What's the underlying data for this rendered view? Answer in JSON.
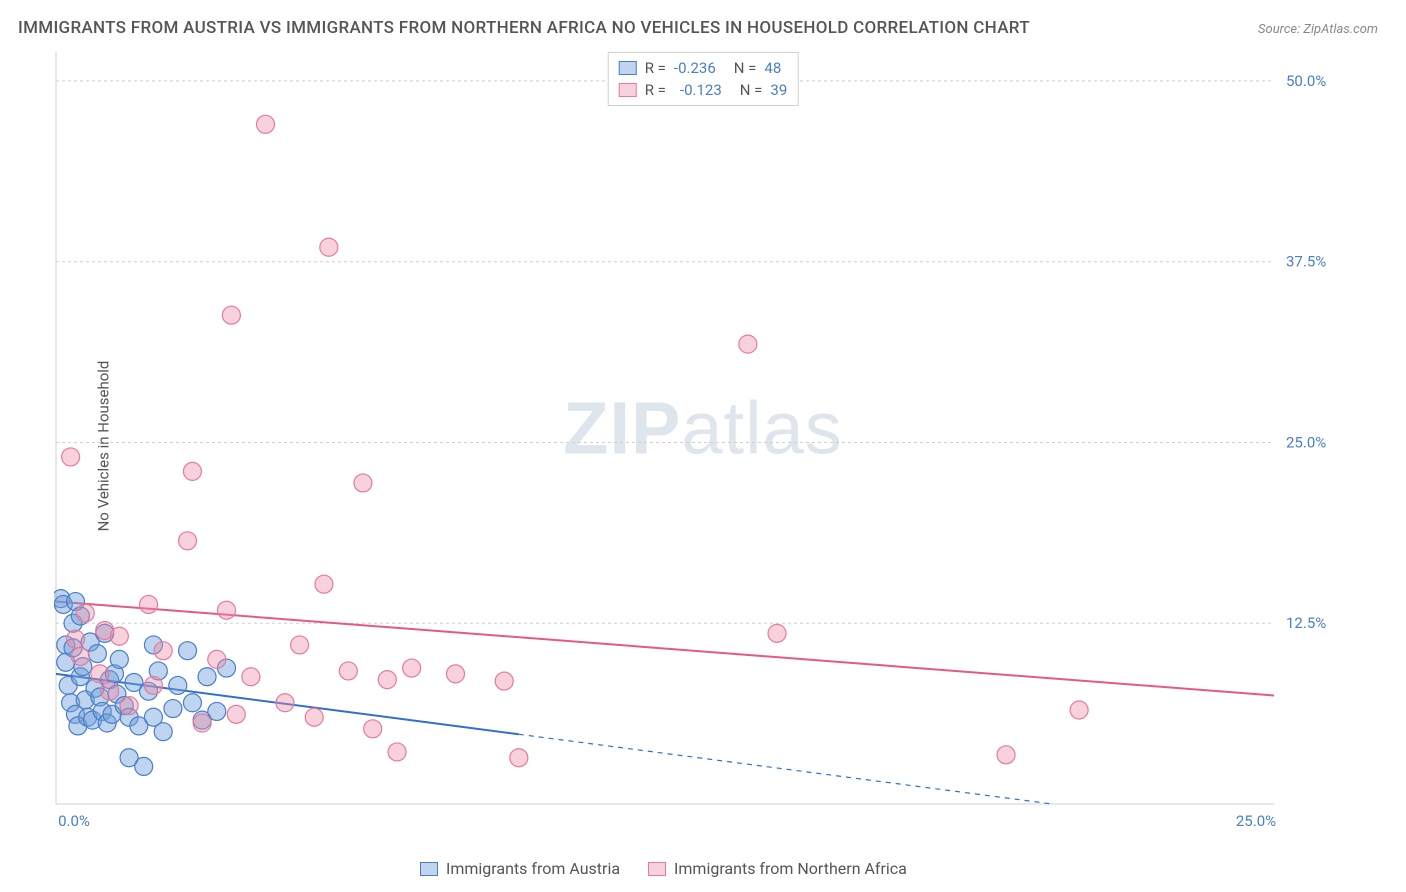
{
  "title": "IMMIGRANTS FROM AUSTRIA VS IMMIGRANTS FROM NORTHERN AFRICA NO VEHICLES IN HOUSEHOLD CORRELATION CHART",
  "source": "Source: ZipAtlas.com",
  "y_axis_label": "No Vehicles in Household",
  "watermark_zip": "ZIP",
  "watermark_atlas": "atlas",
  "chart": {
    "type": "scatter",
    "xlim": [
      0,
      25
    ],
    "ylim": [
      0,
      52
    ],
    "x_ticks": [
      {
        "v": 0,
        "l": "0.0%"
      },
      {
        "v": 25,
        "l": "25.0%"
      }
    ],
    "y_ticks": [
      {
        "v": 12.5,
        "l": "12.5%"
      },
      {
        "v": 25,
        "l": "25.0%"
      },
      {
        "v": 37.5,
        "l": "37.5%"
      },
      {
        "v": 50,
        "l": "50.0%"
      }
    ],
    "background_color": "#ffffff",
    "grid_color": "#d0d0d0",
    "series": [
      {
        "name": "Immigrants from Austria",
        "legend_label": "Immigrants from Austria",
        "marker_color_fill": "rgba(110,160,220,0.45)",
        "marker_color_stroke": "#4a7ec9",
        "marker_radius": 9,
        "trend_color": "#2f6fd1",
        "trend_width": 2,
        "trend": {
          "y_at_x0": 9.0,
          "y_at_xmax": -2.0,
          "solid_until_x": 9.5
        },
        "R": "-0.236",
        "N": "48",
        "points": [
          [
            0.1,
            14.2
          ],
          [
            0.15,
            13.8
          ],
          [
            0.2,
            11.0
          ],
          [
            0.2,
            9.8
          ],
          [
            0.25,
            8.2
          ],
          [
            0.3,
            7.0
          ],
          [
            0.35,
            12.5
          ],
          [
            0.35,
            10.8
          ],
          [
            0.4,
            14.0
          ],
          [
            0.4,
            6.2
          ],
          [
            0.45,
            5.4
          ],
          [
            0.5,
            13.0
          ],
          [
            0.5,
            8.8
          ],
          [
            0.55,
            9.5
          ],
          [
            0.6,
            7.2
          ],
          [
            0.65,
            6.0
          ],
          [
            0.7,
            11.2
          ],
          [
            0.75,
            5.8
          ],
          [
            0.8,
            8.0
          ],
          [
            0.85,
            10.4
          ],
          [
            0.9,
            7.4
          ],
          [
            0.95,
            6.4
          ],
          [
            1.0,
            11.8
          ],
          [
            1.05,
            5.6
          ],
          [
            1.1,
            8.6
          ],
          [
            1.15,
            6.2
          ],
          [
            1.2,
            9.0
          ],
          [
            1.25,
            7.6
          ],
          [
            1.3,
            10.0
          ],
          [
            1.4,
            6.8
          ],
          [
            1.5,
            3.2
          ],
          [
            1.5,
            6.0
          ],
          [
            1.6,
            8.4
          ],
          [
            1.7,
            5.4
          ],
          [
            1.8,
            2.6
          ],
          [
            1.9,
            7.8
          ],
          [
            2.0,
            11.0
          ],
          [
            2.0,
            6.0
          ],
          [
            2.1,
            9.2
          ],
          [
            2.2,
            5.0
          ],
          [
            2.4,
            6.6
          ],
          [
            2.5,
            8.2
          ],
          [
            2.7,
            10.6
          ],
          [
            2.8,
            7.0
          ],
          [
            3.0,
            5.8
          ],
          [
            3.1,
            8.8
          ],
          [
            3.3,
            6.4
          ],
          [
            3.5,
            9.4
          ]
        ]
      },
      {
        "name": "Immigrants from Northern Africa",
        "legend_label": "Immigrants from Northern Africa",
        "marker_color_fill": "rgba(235,140,165,0.4)",
        "marker_color_stroke": "#e87a9c",
        "marker_radius": 9,
        "trend_color": "#e35a88",
        "trend_width": 2,
        "trend": {
          "y_at_x0": 14.0,
          "y_at_xmax": 7.5,
          "solid_until_x": 25
        },
        "R": "-0.123",
        "N": "39",
        "points": [
          [
            0.3,
            24.0
          ],
          [
            0.4,
            11.4
          ],
          [
            0.5,
            10.2
          ],
          [
            0.6,
            13.2
          ],
          [
            0.9,
            9.0
          ],
          [
            1.0,
            12.0
          ],
          [
            1.1,
            7.8
          ],
          [
            1.3,
            11.6
          ],
          [
            1.5,
            6.8
          ],
          [
            1.9,
            13.8
          ],
          [
            2.0,
            8.2
          ],
          [
            2.2,
            10.6
          ],
          [
            2.7,
            18.2
          ],
          [
            2.8,
            23.0
          ],
          [
            3.0,
            5.6
          ],
          [
            3.3,
            10.0
          ],
          [
            3.5,
            13.4
          ],
          [
            3.6,
            33.8
          ],
          [
            3.7,
            6.2
          ],
          [
            4.0,
            8.8
          ],
          [
            4.3,
            47.0
          ],
          [
            4.7,
            7.0
          ],
          [
            5.0,
            11.0
          ],
          [
            5.3,
            6.0
          ],
          [
            5.5,
            15.2
          ],
          [
            5.6,
            38.5
          ],
          [
            6.0,
            9.2
          ],
          [
            6.3,
            22.2
          ],
          [
            6.5,
            5.2
          ],
          [
            6.8,
            8.6
          ],
          [
            7.0,
            3.6
          ],
          [
            7.3,
            9.4
          ],
          [
            8.2,
            9.0
          ],
          [
            9.2,
            8.5
          ],
          [
            9.5,
            3.2
          ],
          [
            14.2,
            31.8
          ],
          [
            14.8,
            11.8
          ],
          [
            19.5,
            3.4
          ],
          [
            21.0,
            6.5
          ]
        ]
      }
    ]
  },
  "legend_top": {
    "r_label": "R =",
    "n_label": "N ="
  }
}
